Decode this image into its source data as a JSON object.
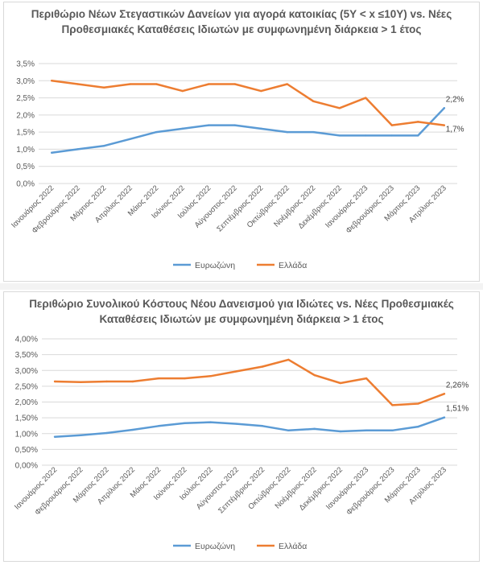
{
  "chart_data": [
    {
      "type": "line",
      "title": "Περιθώριο Νέων Στεγαστικών Δανείων για αγορά κατοικίας (5Υ < x ≤10Υ) vs. Νέες Προθεσμιακές Καταθέσεις Ιδιωτών με συμφωνημένη διάρκεια > 1 έτος",
      "categories": [
        "Ιανουάριος 2022",
        "Φεβρουάριος 2022",
        "Μάρτιος 2022",
        "Απρίλιος 2022",
        "Μάιος 2022",
        "Ιούνιος 2022",
        "Ιούλιος 2022",
        "Αύγουστος 2022",
        "Σεπτέμβριος 2022",
        "Οκτώβριος 2022",
        "Νοέμβριος 2022",
        "Δεκέμβριος 2022",
        "Ιανουάριος 2023",
        "Φεβρουάριος 2023",
        "Μάρτιος 2023",
        "Απρίλιος 2023"
      ],
      "series": [
        {
          "name": "Ευρωζώνη",
          "color": "#5b9bd5",
          "values": [
            0.9,
            1.0,
            1.1,
            1.3,
            1.5,
            1.6,
            1.7,
            1.7,
            1.6,
            1.5,
            1.5,
            1.4,
            1.4,
            1.4,
            1.4,
            2.2
          ],
          "end_label": "2,2%"
        },
        {
          "name": "Ελλάδα",
          "color": "#ed7d31",
          "values": [
            3.0,
            2.9,
            2.8,
            2.9,
            2.9,
            2.7,
            2.9,
            2.9,
            2.7,
            2.9,
            2.4,
            2.2,
            2.5,
            1.7,
            1.8,
            1.7
          ],
          "end_label": "1,7%"
        }
      ],
      "ylim": [
        0,
        3.5
      ],
      "yticks": [
        "0,0%",
        "0,5%",
        "1,0%",
        "1,5%",
        "2,0%",
        "2,5%",
        "3,0%",
        "3,5%"
      ],
      "ytick_values": [
        0,
        0.5,
        1.0,
        1.5,
        2.0,
        2.5,
        3.0,
        3.5
      ],
      "grid": true,
      "legend": "bottom"
    },
    {
      "type": "line",
      "title": "Περιθώριο Συνολικού Κόστους Νέου Δανεισμού για Ιδιώτες vs. Νέες Προθεσμιακές Καταθέσεις Ιδιωτών με συμφωνημένη διάρκεια > 1 έτος",
      "categories": [
        "Ιανουάριος 2022",
        "Φεβρουάριος 2022",
        "Μάρτιος 2022",
        "Απρίλιος 2022",
        "Μάιος 2022",
        "Ιούνιος 2022",
        "Ιούλιος 2022",
        "Αύγουστος 2022",
        "Σεπτέμβριος 2022",
        "Οκτώβριος 2022",
        "Νοέμβριος 2022",
        "Δεκέμβριος 2022",
        "Ιανουάριος 2023",
        "Φεβρουάριος 2023",
        "Μάρτιος 2023",
        "Απρίλιος 2023"
      ],
      "series": [
        {
          "name": "Ευρωζώνη",
          "color": "#5b9bd5",
          "values": [
            0.9,
            0.95,
            1.02,
            1.12,
            1.24,
            1.33,
            1.36,
            1.31,
            1.24,
            1.1,
            1.15,
            1.07,
            1.1,
            1.1,
            1.22,
            1.51
          ],
          "end_label": "1,51%"
        },
        {
          "name": "Ελλάδα",
          "color": "#ed7d31",
          "values": [
            2.65,
            2.63,
            2.65,
            2.65,
            2.75,
            2.75,
            2.82,
            2.97,
            3.12,
            3.34,
            2.85,
            2.6,
            2.75,
            1.9,
            1.95,
            2.26
          ],
          "end_label": "2,26%"
        }
      ],
      "ylim": [
        0,
        4.0
      ],
      "yticks": [
        "0,00%",
        "0,50%",
        "1,00%",
        "1,50%",
        "2,00%",
        "2,50%",
        "3,00%",
        "3,50%",
        "4,00%"
      ],
      "ytick_values": [
        0,
        0.5,
        1.0,
        1.5,
        2.0,
        2.5,
        3.0,
        3.5,
        4.0
      ],
      "grid": true,
      "legend": "bottom"
    }
  ]
}
